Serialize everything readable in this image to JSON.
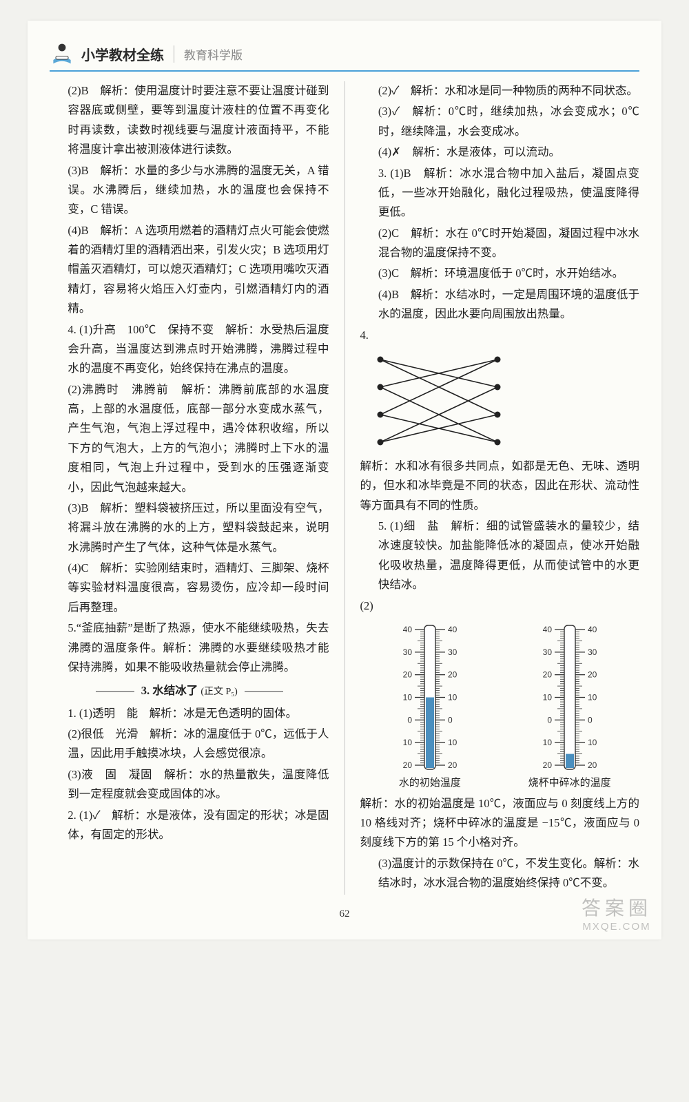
{
  "header": {
    "series": "小学教材全练",
    "edition": "教育科学版"
  },
  "pageNumber": "62",
  "watermark": {
    "line1": "答案圈",
    "line2": "MXQE.COM"
  },
  "left": {
    "p1": "(2)B　解析：使用温度计时要注意不要让温度计碰到容器底或侧壁，要等到温度计液柱的位置不再变化时再读数，读数时视线要与温度计液面持平，不能将温度计拿出被测液体进行读数。",
    "p2": "(3)B　解析：水量的多少与水沸腾的温度无关，A 错误。水沸腾后，继续加热，水的温度也会保持不变，C 错误。",
    "p3": "(4)B　解析：A 选项用燃着的酒精灯点火可能会使燃着的酒精灯里的酒精洒出来，引发火灾；B 选项用灯帽盖灭酒精灯，可以熄灭酒精灯；C 选项用嘴吹灭酒精灯，容易将火焰压入灯壶内，引燃酒精灯内的酒精。",
    "q4_1": "4. (1)升高　100℃　保持不变　解析：水受热后温度会升高，当温度达到沸点时开始沸腾，沸腾过程中水的温度不再变化，始终保持在沸点的温度。",
    "q4_2": "(2)沸腾时　沸腾前　解析：沸腾前底部的水温度高，上部的水温度低，底部一部分水变成水蒸气，产生气泡，气泡上浮过程中，遇冷体积收缩，所以下方的气泡大，上方的气泡小；沸腾时上下水的温度相同，气泡上升过程中，受到水的压强逐渐变小，因此气泡越来越大。",
    "q4_3": "(3)B　解析：塑料袋被挤压过，所以里面没有空气，将漏斗放在沸腾的水的上方，塑料袋鼓起来，说明水沸腾时产生了气体，这种气体是水蒸气。",
    "q4_4": "(4)C　解析：实验刚结束时，酒精灯、三脚架、烧杯等实验材料温度很高，容易烫伤，应冷却一段时间后再整理。",
    "q5": "5.“釜底抽薪”是断了热源，使水不能继续吸热，失去沸腾的温度条件。解析：沸腾的水要继续吸热才能保持沸腾，如果不能吸收热量就会停止沸腾。",
    "sectionTitle": "3. 水结冰了",
    "sectionRef": "(正文 P₅)",
    "s1_1": "1. (1)透明　能　解析：冰是无色透明的固体。",
    "s1_2": "(2)很低　光滑　解析：冰的温度低于 0℃，远低于人温，因此用手触摸冰块，人会感觉很凉。",
    "s1_3": "(3)液　固　凝固　解析：水的热量散失，温度降低到一定程度就会变成固体的冰。",
    "s2_1": "2. (1)✓　解析：水是液体，没有固定的形状；冰是固体，有固定的形状。"
  },
  "right": {
    "p1": "(2)✓　解析：水和冰是同一种物质的两种不同状态。",
    "p2": "(3)✓　解析：0℃时，继续加热，冰会变成水；0℃时，继续降温，水会变成冰。",
    "p3": "(4)✗　解析：水是液体，可以流动。",
    "q3_1": "3. (1)B　解析：冰水混合物中加入盐后，凝固点变低，一些冰开始融化，融化过程吸热，使温度降得更低。",
    "q3_2": "(2)C　解析：水在 0℃时开始凝固，凝固过程中冰水混合物的温度保持不变。",
    "q3_3": "(3)C　解析：环境温度低于 0℃时，水开始结冰。",
    "q3_4": "(4)B　解析：水结冰时，一定是周围环境的温度低于水的温度，因此水要向周围放出热量。",
    "q4_label": "4.",
    "q4_expl": "解析：水和冰有很多共同点，如都是无色、无味、透明的，但水和冰毕竟是不同的状态，因此在形状、流动性等方面具有不同的性质。",
    "q5_1": "5. (1)细　盐　解析：细的试管盛装水的量较少，结冰速度较快。加盐能降低冰的凝固点，使冰开始融化吸收热量，温度降得更低，从而使试管中的水更快结冰。",
    "q5_2": "(2)",
    "thermo": {
      "leftLabel": "水的初始温度",
      "rightLabel": "烧杯中碎冰的温度",
      "maxTick": 40,
      "minTick": -20,
      "leftValue": 10,
      "rightValue": -15,
      "tubeColor": "#4a8fbf",
      "lineColor": "#333333"
    },
    "q5_expl": "解析：水的初始温度是 10℃，液面应与 0 刻度线上方的 10 格线对齐；烧杯中碎冰的温度是 −15℃，液面应与 0 刻度线下方的第 15 个小格对齐。",
    "q5_3": "(3)温度计的示数保持在 0℃，不发生变化。解析：水结冰时，冰水混合物的温度始终保持 0℃不变。"
  },
  "matching": {
    "leftCount": 4,
    "rightCount": 4,
    "pairs": [
      [
        0,
        1
      ],
      [
        0,
        2
      ],
      [
        1,
        0
      ],
      [
        1,
        3
      ],
      [
        2,
        0
      ],
      [
        2,
        3
      ],
      [
        3,
        1
      ],
      [
        3,
        2
      ]
    ],
    "dotColor": "#222222",
    "lineColor": "#222222"
  }
}
